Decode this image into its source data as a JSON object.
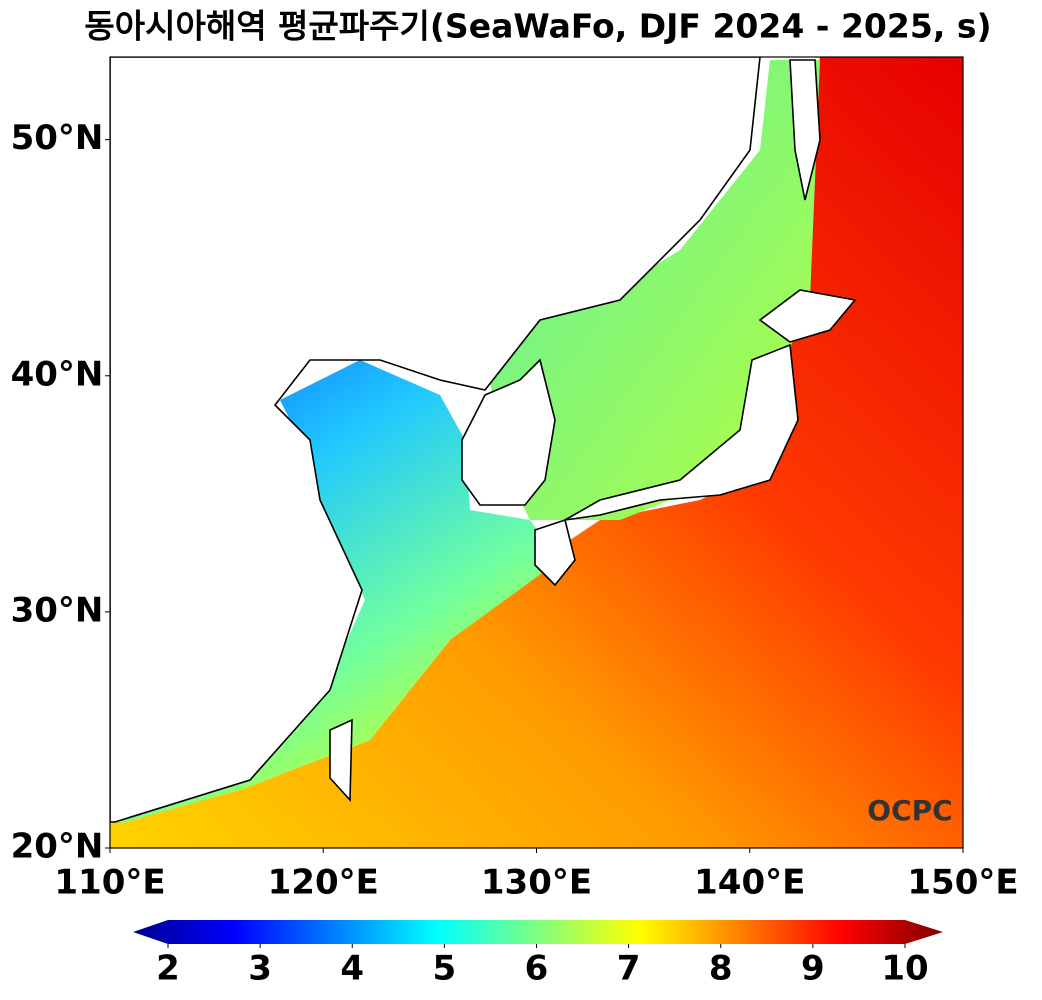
{
  "chart_data": {
    "type": "map",
    "title": "동아시아해역 평균파주기(SeaWaFo, DJF 2024 - 2025, s)",
    "xlim": [
      110,
      150
    ],
    "ylim": [
      20,
      53.5
    ],
    "xticks": [
      {
        "value": 110,
        "label": "110°E"
      },
      {
        "value": 120,
        "label": "120°E"
      },
      {
        "value": 130,
        "label": "130°E"
      },
      {
        "value": 140,
        "label": "140°E"
      },
      {
        "value": 150,
        "label": "150°E"
      }
    ],
    "yticks": [
      {
        "value": 20,
        "label": "20°N"
      },
      {
        "value": 30,
        "label": "30°N"
      },
      {
        "value": 40,
        "label": "40°N"
      },
      {
        "value": 50,
        "label": "50°N"
      }
    ],
    "colorbar": {
      "lim": [
        2,
        10
      ],
      "ticks": [
        2,
        3,
        4,
        5,
        6,
        7,
        8,
        9,
        10
      ]
    },
    "annotation": "OCPC"
  }
}
